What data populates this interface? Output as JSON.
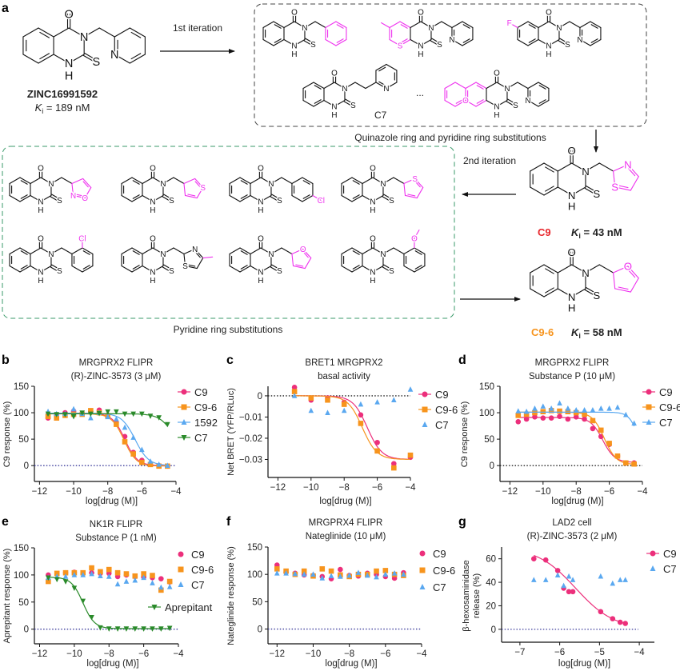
{
  "panel_letters": {
    "a": "a",
    "b": "b",
    "c": "c",
    "d": "d",
    "e": "e",
    "f": "f",
    "g": "g"
  },
  "chem": {
    "atom_labels": {
      "O": "O",
      "N": "N",
      "H": "H",
      "S": "S",
      "F": "F",
      "Cl": "Cl"
    },
    "substituent_color": "#ee33ee",
    "hit": {
      "name": "ZINC16991592",
      "ki_symbol": "K",
      "ki_subscript": "i",
      "ki_value": " = 189 nM"
    },
    "first_iteration_label": "1st iteration",
    "first_iteration_caption": "Quinazole ring and pyridine ring substitutions",
    "c7_label": "C7",
    "ellipsis": "...",
    "second_iteration_label": "2nd iteration",
    "second_iteration_caption": "Pyridine ring substitutions",
    "c9": {
      "name": "C9",
      "color": "#e8262c",
      "ki_symbol": "K",
      "ki_subscript": "i",
      "ki_value": " = 43 nM"
    },
    "c9_6": {
      "name": "C9-6",
      "color": "#f7941d",
      "ki_symbol": "K",
      "ki_subscript": "i",
      "ki_value": " = 58 nM"
    }
  },
  "chart_data": [
    {
      "panel": "b",
      "type": "scatter",
      "title": [
        "MRGPRX2 FLIPR",
        "(R)-ZINC-3573 (3 μM)"
      ],
      "xlabel": "log[drug (M)]",
      "ylabel": [
        "C9 response (%)"
      ],
      "xlim": [
        -12.3,
        -4
      ],
      "ylim": [
        -30,
        150
      ],
      "xticks": [
        -12,
        -10,
        -8,
        -6,
        -4
      ],
      "xtick_labels": [
        "−12",
        "−10",
        "−8",
        "−6",
        "−4"
      ],
      "yticks": [
        0,
        50,
        100,
        150
      ],
      "ytick_labels": [
        "0",
        "50",
        "100",
        "150"
      ],
      "reference_line": {
        "y": 0,
        "style": "dotted",
        "color": "#3a3a9a"
      },
      "legend": "right",
      "series": [
        {
          "name": "C9",
          "color": "#ec2f7b",
          "marker": "circle",
          "x": [
            -11.5,
            -11,
            -10.5,
            -10,
            -9.5,
            -9,
            -8.5,
            -8,
            -7.5,
            -7,
            -6.5,
            -6,
            -5.5,
            -5,
            -4.5
          ],
          "y": [
            90,
            95,
            100,
            103,
            98,
            102,
            105,
            95,
            82,
            55,
            25,
            10,
            3,
            0,
            -1
          ],
          "fit": {
            "top": 99,
            "bottom": 0,
            "logIC50": -7.0,
            "hill": 1.2
          }
        },
        {
          "name": "C9-6",
          "color": "#f7941d",
          "marker": "square",
          "x": [
            -11.5,
            -11,
            -10.5,
            -10,
            -9.5,
            -9,
            -8.5,
            -8,
            -7.5,
            -7,
            -6.5,
            -6,
            -5.5,
            -5,
            -4.5
          ],
          "y": [
            93,
            90,
            95,
            97,
            97,
            104,
            100,
            94,
            78,
            45,
            22,
            6,
            2,
            -1,
            -1
          ],
          "fit": {
            "top": 98,
            "bottom": -1,
            "logIC50": -7.05,
            "hill": 1.2
          }
        },
        {
          "name": "1592",
          "color": "#5aa8f0",
          "marker": "triangle-up",
          "x": [
            -11.5,
            -11,
            -10.5,
            -10,
            -9.5,
            -9,
            -8.5,
            -8,
            -7.5,
            -7,
            -6.5,
            -6,
            -5.5,
            -5,
            -4.5
          ],
          "y": [
            102,
            98,
            98,
            107,
            98,
            90,
            100,
            92,
            88,
            72,
            53,
            30,
            8,
            2,
            0
          ],
          "fit": {
            "top": 99,
            "bottom": 0,
            "logIC50": -6.4,
            "hill": 1.1
          }
        },
        {
          "name": "C7",
          "color": "#2a8a2a",
          "marker": "triangle-down",
          "x": [
            -11.5,
            -11,
            -10.5,
            -10,
            -9.5,
            -9,
            -8.5,
            -8,
            -7.5,
            -7,
            -6.5,
            -6,
            -5.5,
            -5,
            -4.5
          ],
          "y": [
            98,
            97,
            97,
            93,
            100,
            98,
            99,
            102,
            102,
            98,
            98,
            98,
            94,
            91,
            78
          ],
          "fit": {
            "top": 98,
            "bottom": 0,
            "logIC50": -4.0,
            "hill": 1.0
          }
        }
      ]
    },
    {
      "panel": "c",
      "type": "scatter",
      "title": [
        "BRET1 MRGPRX2",
        "basal activity"
      ],
      "xlabel": "log[drug (M)]",
      "ylabel": [
        "Net BRET (YFP/RLuc)"
      ],
      "xlim": [
        -12.6,
        -4
      ],
      "ylim": [
        -0.0385,
        0.0045
      ],
      "xticks": [
        -12,
        -10,
        -8,
        -6,
        -4
      ],
      "xtick_labels": [
        "−12",
        "−10",
        "−8",
        "−6",
        "−4"
      ],
      "yticks": [
        0,
        -0.01,
        -0.02,
        -0.03
      ],
      "ytick_labels": [
        "0",
        "−0.01",
        "−0.02",
        "−0.03"
      ],
      "reference_line": {
        "y": 0,
        "style": "dotted",
        "color": "#222222"
      },
      "legend": "right",
      "series": [
        {
          "name": "C9",
          "color": "#ec2f7b",
          "marker": "circle",
          "x": [
            -11,
            -10,
            -9,
            -8,
            -7,
            -6,
            -5,
            -4
          ],
          "y": [
            0.004,
            -0.002,
            -0.001,
            -0.003,
            -0.009,
            -0.022,
            -0.032,
            -0.029
          ],
          "fit": {
            "top": 0,
            "bottom": -0.03,
            "logIC50": -6.6,
            "hill": 1.0
          }
        },
        {
          "name": "C9-6",
          "color": "#f7941d",
          "marker": "square",
          "x": [
            -11,
            -10,
            -9,
            -8,
            -7,
            -6,
            -5,
            -4
          ],
          "y": [
            0.002,
            -0.001,
            -0.002,
            -0.004,
            -0.013,
            -0.026,
            -0.034,
            -0.028
          ],
          "fit": {
            "top": 0,
            "bottom": -0.03,
            "logIC50": -6.9,
            "hill": 1.0
          }
        },
        {
          "name": "C7",
          "color": "#5aa8f0",
          "marker": "triangle-up",
          "x": [
            -11,
            -10,
            -9,
            -8,
            -7,
            -6,
            -5,
            -4
          ],
          "y": [
            0,
            -0.007,
            -0.008,
            -0.007,
            -0.004,
            -0.003,
            -0.002,
            0.003
          ]
        }
      ]
    },
    {
      "panel": "d",
      "type": "scatter",
      "title": [
        "MRGPRX2 FLIPR",
        "Substance P (10 μM)"
      ],
      "xlabel": "log[drug (M)]",
      "ylabel": [
        "C9 response (%)"
      ],
      "xlim": [
        -12.6,
        -4
      ],
      "ylim": [
        -30,
        150
      ],
      "xticks": [
        -12,
        -10,
        -8,
        -6,
        -4
      ],
      "xtick_labels": [
        "−12",
        "−10",
        "−8",
        "−6",
        "−4"
      ],
      "yticks": [
        0,
        50,
        100,
        150
      ],
      "ytick_labels": [
        "0",
        "50",
        "100",
        "150"
      ],
      "reference_line": {
        "y": 0,
        "style": "dotted",
        "color": "#222222"
      },
      "legend": "right",
      "series": [
        {
          "name": "C9",
          "color": "#ec2f7b",
          "marker": "circle",
          "x": [
            -11.5,
            -11,
            -10.5,
            -10,
            -9.5,
            -9,
            -8.5,
            -8,
            -7.5,
            -7,
            -6.5,
            -6,
            -5.5,
            -5,
            -4.5
          ],
          "y": [
            83,
            88,
            92,
            90,
            90,
            93,
            88,
            92,
            88,
            70,
            55,
            40,
            18,
            5,
            5
          ],
          "fit": {
            "top": 91,
            "bottom": 6,
            "logIC50": -6.4,
            "hill": 1.2
          }
        },
        {
          "name": "C9-6",
          "color": "#f7941d",
          "marker": "square",
          "x": [
            -11.5,
            -11,
            -10.5,
            -10,
            -9.5,
            -9,
            -8.5,
            -8,
            -7.5,
            -7,
            -6.5,
            -6,
            -5.5,
            -5,
            -4.5
          ],
          "y": [
            95,
            97,
            100,
            102,
            104,
            103,
            102,
            100,
            97,
            85,
            67,
            42,
            18,
            5,
            3
          ],
          "fit": {
            "top": 101,
            "bottom": 2,
            "logIC50": -6.3,
            "hill": 1.2
          }
        },
        {
          "name": "C7",
          "color": "#5aa8f0",
          "marker": "triangle-up",
          "x": [
            -11.5,
            -11,
            -10.5,
            -10,
            -9.5,
            -9,
            -8.5,
            -8,
            -7.5,
            -7,
            -6.5,
            -6,
            -5.5,
            -5,
            -4.5
          ],
          "y": [
            103,
            102,
            108,
            112,
            108,
            118,
            108,
            105,
            105,
            105,
            108,
            108,
            110,
            96,
            80
          ],
          "fit": {
            "top": 101,
            "bottom": 0,
            "logIC50": -4.2,
            "hill": 1.5
          }
        }
      ]
    },
    {
      "panel": "e",
      "type": "scatter",
      "title": [
        "NK1R FLIPR",
        "Substance P (1 nM)"
      ],
      "xlabel": "log[drug (M)]",
      "ylabel": [
        "Aprepitant response (%)"
      ],
      "xlim": [
        -12.3,
        -4
      ],
      "ylim": [
        -27,
        150
      ],
      "xticks": [
        -12,
        -10,
        -8,
        -6,
        -4
      ],
      "xtick_labels": [
        "−12",
        "−10",
        "−8",
        "−6",
        "−4"
      ],
      "yticks": [
        0,
        50,
        100,
        150
      ],
      "ytick_labels": [
        "0",
        "50",
        "100",
        "150"
      ],
      "reference_line": {
        "y": 0,
        "style": "dotted",
        "color": "#3a3a9a"
      },
      "legend": "right",
      "series": [
        {
          "name": "C9",
          "color": "#ec2f7b",
          "marker": "circle",
          "x": [
            -11.5,
            -11,
            -10.5,
            -10,
            -9.5,
            -9,
            -8.5,
            -8,
            -7.5,
            -7,
            -6.5,
            -6,
            -5.5,
            -5,
            -4.5
          ],
          "y": [
            100,
            102,
            104,
            105,
            103,
            104,
            103,
            103,
            97,
            100,
            97,
            96,
            95,
            93,
            87
          ]
        },
        {
          "name": "C9-6",
          "color": "#f7941d",
          "marker": "square",
          "x": [
            -11.5,
            -11,
            -10.5,
            -10,
            -9.5,
            -9,
            -8.5,
            -8,
            -7.5,
            -7,
            -6.5,
            -6,
            -5.5,
            -5,
            -4.5
          ],
          "y": [
            88,
            103,
            104,
            104,
            104,
            113,
            106,
            110,
            104,
            102,
            98,
            102,
            99,
            72,
            88
          ]
        },
        {
          "name": "C7",
          "color": "#5aa8f0",
          "marker": "triangle-up",
          "x": [
            -11.5,
            -11,
            -10.5,
            -10,
            -9.5,
            -9,
            -8.5,
            -8,
            -7.5,
            -7,
            -6.5,
            -6,
            -5.5,
            -5,
            -4.5
          ],
          "y": [
            95,
            97,
            97,
            100,
            100,
            102,
            98,
            97,
            83,
            88,
            90,
            95,
            85,
            77,
            78
          ]
        },
        {
          "name": "Aprepitant",
          "color": "#2a8a2a",
          "marker": "triangle-down",
          "x": [
            -11.5,
            -11,
            -10.5,
            -10,
            -9.5,
            -9,
            -8.5,
            -8,
            -7.5,
            -7,
            -6.5,
            -6,
            -5.5,
            -5,
            -4.5
          ],
          "y": [
            95,
            92,
            88,
            76,
            52,
            22,
            3,
            1,
            1,
            1,
            1,
            1,
            1,
            1,
            2
          ],
          "fit": {
            "top": 96,
            "bottom": 1,
            "logIC50": -9.5,
            "hill": 1.3
          }
        }
      ]
    },
    {
      "panel": "f",
      "type": "scatter",
      "title": [
        "MRGPRX4 FLIPR",
        "Nateglinide (10 μM)"
      ],
      "xlabel": "log[drug (M)]",
      "ylabel": [
        "Nateglinide response (%)"
      ],
      "xlim": [
        -12.5,
        -4
      ],
      "ylim": [
        -27,
        150
      ],
      "xticks": [
        -12,
        -10,
        -8,
        -6,
        -4
      ],
      "xtick_labels": [
        "−12",
        "−10",
        "−8",
        "−6",
        "−4"
      ],
      "yticks": [
        0,
        50,
        100,
        150
      ],
      "ytick_labels": [
        "0",
        "50",
        "100",
        "150"
      ],
      "reference_line": {
        "y": 0,
        "style": "dotted",
        "color": "#3a3a9a"
      },
      "legend": "right",
      "series": [
        {
          "name": "C9",
          "color": "#ec2f7b",
          "marker": "circle",
          "x": [
            -12,
            -11.5,
            -11,
            -10.5,
            -10,
            -9.5,
            -9,
            -8.5,
            -8,
            -7.5,
            -7,
            -6.5,
            -6,
            -5.5,
            -5
          ],
          "y": [
            117,
            104,
            102,
            99,
            98,
            96,
            92,
            109,
            98,
            97,
            102,
            100,
            96,
            93,
            103
          ]
        },
        {
          "name": "C9-6",
          "color": "#f7941d",
          "marker": "square",
          "x": [
            -12,
            -11.5,
            -11,
            -10.5,
            -10,
            -9.5,
            -9,
            -8.5,
            -8,
            -7.5,
            -7,
            -6.5,
            -6,
            -5.5,
            -5
          ],
          "y": [
            110,
            106,
            100,
            106,
            97,
            110,
            106,
            99,
            96,
            100,
            100,
            106,
            107,
            100,
            98
          ]
        },
        {
          "name": "C7",
          "color": "#5aa8f0",
          "marker": "triangle-up",
          "x": [
            -12,
            -11.5,
            -11,
            -10.5,
            -10,
            -9.5,
            -9,
            -8.5,
            -8,
            -7.5,
            -7,
            -6.5,
            -6,
            -5.5,
            -5
          ],
          "y": [
            102,
            102,
            101,
            100,
            100,
            93,
            97,
            96,
            98,
            103,
            98,
            95,
            100,
            102,
            100
          ]
        }
      ]
    },
    {
      "panel": "g",
      "type": "scatter",
      "title": [
        "LAD2 cell",
        "(R)-ZINC-3573 (2 μM)"
      ],
      "xlabel": "log[drug (M)]",
      "ylabel": [
        "β-hexosaminidase",
        "release (%)"
      ],
      "xlim": [
        -7.46,
        -3.62
      ],
      "ylim": [
        -11,
        70
      ],
      "xticks": [
        -7,
        -6,
        -5,
        -4
      ],
      "xtick_labels": [
        "−7",
        "−6",
        "−5",
        "−4"
      ],
      "yticks": [
        0,
        20,
        40,
        60
      ],
      "ytick_labels": [
        "0",
        "20",
        "40",
        "60"
      ],
      "reference_line": {
        "y": 0,
        "style": "dotted",
        "color": "#3a3a9a"
      },
      "legend": "right",
      "series": [
        {
          "name": "C9",
          "color": "#ec2f7b",
          "marker": "circle",
          "x": [
            -6.65,
            -6.35,
            -6.05,
            -5.9,
            -5.77,
            -5.67,
            -4.97,
            -4.67,
            -4.48,
            -4.35
          ],
          "y": [
            60,
            59,
            50,
            35,
            32,
            32,
            15,
            9,
            6,
            5
          ],
          "fit": {
            "top": 70,
            "bottom": 0,
            "logIC50": -5.6,
            "hill": 0.9
          }
        },
        {
          "name": "C7",
          "color": "#5aa8f0",
          "marker": "triangle-up",
          "x": [
            -6.65,
            -6.35,
            -6.05,
            -5.9,
            -5.77,
            -5.67,
            -4.97,
            -4.67,
            -4.48,
            -4.35
          ],
          "y": [
            42,
            42,
            46,
            37,
            45,
            42,
            45,
            39,
            42,
            42
          ]
        }
      ]
    }
  ]
}
